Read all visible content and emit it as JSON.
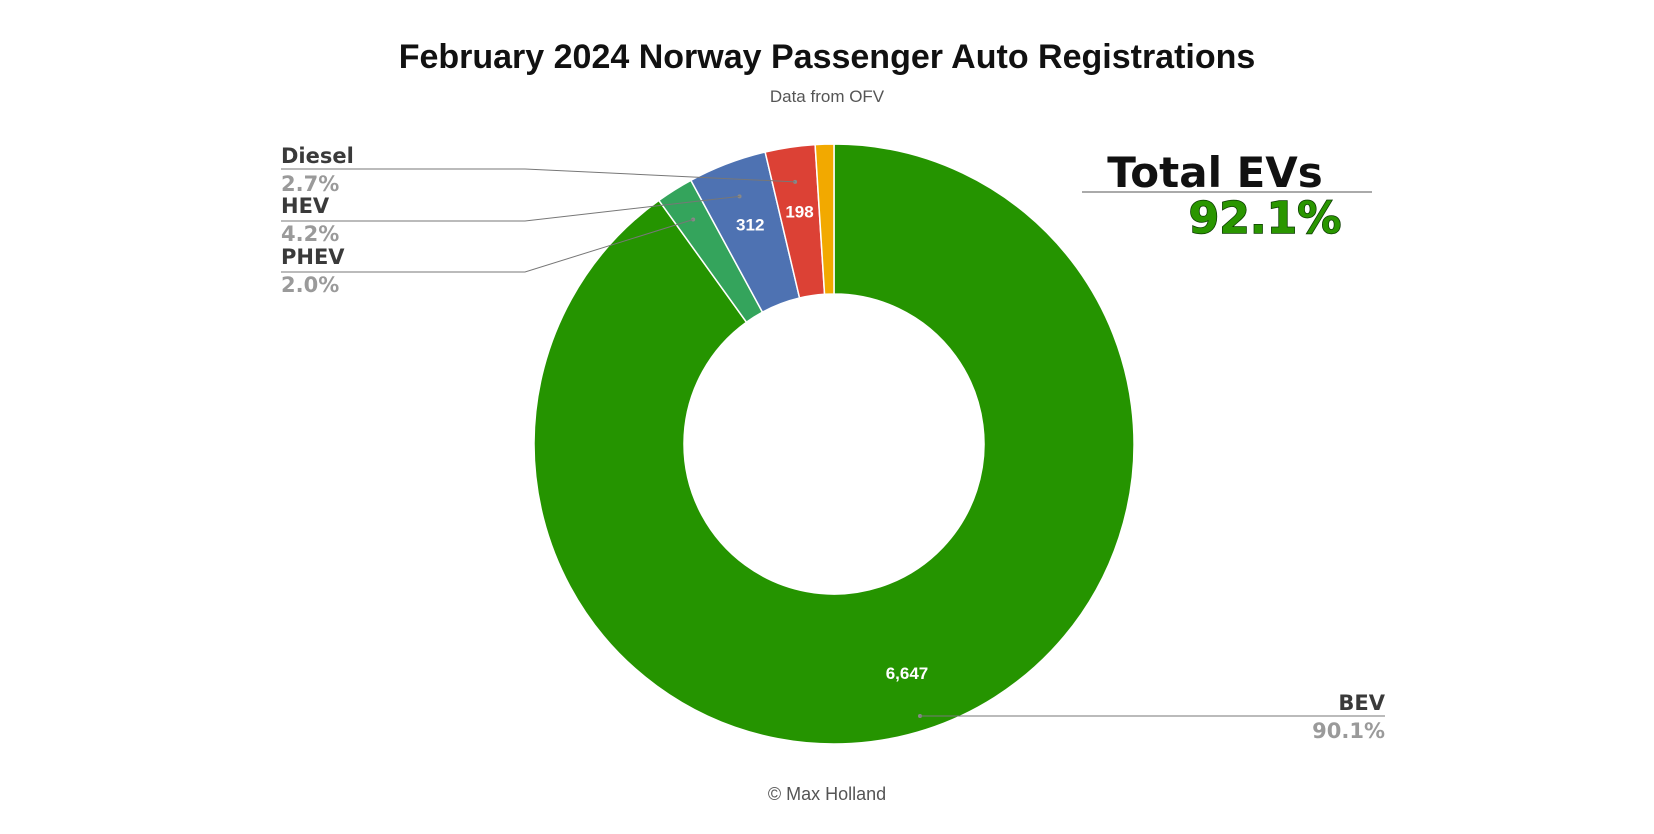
{
  "chart_data": {
    "type": "pie",
    "title": "February 2024 Norway Passenger Auto Registrations",
    "subtitle": "Data from OFV",
    "footer": "© Max Holland",
    "donut": true,
    "segments": [
      {
        "key": "bev",
        "label": "BEV",
        "value": 6647,
        "value_label": "6,647",
        "percent_label": "90.1%",
        "color": "#259400"
      },
      {
        "key": "phev",
        "label": "PHEV",
        "value": 148,
        "value_label": "",
        "percent_label": "2.0%",
        "color": "#34a45c"
      },
      {
        "key": "hev",
        "label": "HEV",
        "value": 312,
        "value_label": "312",
        "percent_label": "4.2%",
        "color": "#4e72b2"
      },
      {
        "key": "diesel",
        "label": "Diesel",
        "value": 198,
        "value_label": "198",
        "percent_label": "2.7%",
        "color": "#dc4135"
      },
      {
        "key": "other",
        "label": "",
        "value": 74,
        "value_label": "",
        "percent_label": "",
        "color": "#f2a900"
      }
    ],
    "annotation": {
      "title": "Total EVs",
      "value": "92.1%"
    }
  }
}
